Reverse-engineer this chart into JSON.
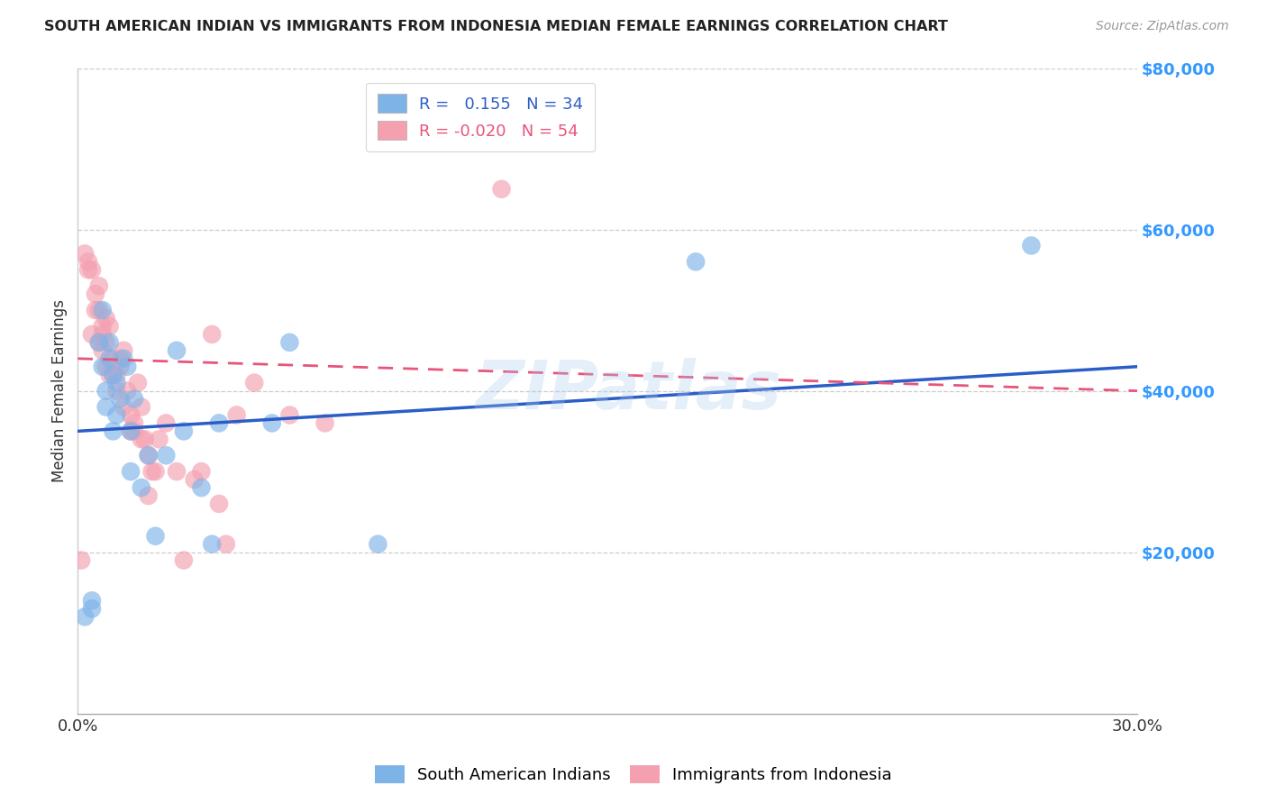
{
  "title": "SOUTH AMERICAN INDIAN VS IMMIGRANTS FROM INDONESIA MEDIAN FEMALE EARNINGS CORRELATION CHART",
  "source": "Source: ZipAtlas.com",
  "ylabel": "Median Female Earnings",
  "xlim": [
    0.0,
    0.3
  ],
  "ylim": [
    0,
    80000
  ],
  "xticks": [
    0.0,
    0.05,
    0.1,
    0.15,
    0.2,
    0.25,
    0.3
  ],
  "xticklabels": [
    "0.0%",
    "",
    "",
    "",
    "",
    "",
    "30.0%"
  ],
  "ytick_positions": [
    0,
    20000,
    40000,
    60000,
    80000
  ],
  "ytick_labels": [
    "",
    "$20,000",
    "$40,000",
    "$60,000",
    "$80,000"
  ],
  "blue_R": 0.155,
  "blue_N": 34,
  "pink_R": -0.02,
  "pink_N": 54,
  "blue_color": "#7EB3E8",
  "pink_color": "#F4A0B0",
  "blue_line_color": "#2B5DC8",
  "pink_line_color": "#E8547A",
  "ytick_color": "#3399FF",
  "legend_label_blue": "South American Indians",
  "legend_label_pink": "Immigrants from Indonesia",
  "watermark": "ZIPatlas",
  "blue_line_x0": 0.0,
  "blue_line_y0": 35000,
  "blue_line_x1": 0.3,
  "blue_line_y1": 43000,
  "pink_line_x0": 0.0,
  "pink_line_y0": 44000,
  "pink_line_x1": 0.3,
  "pink_line_y1": 40000,
  "blue_scatter_x": [
    0.002,
    0.004,
    0.004,
    0.006,
    0.007,
    0.007,
    0.008,
    0.008,
    0.009,
    0.009,
    0.01,
    0.01,
    0.011,
    0.011,
    0.012,
    0.013,
    0.014,
    0.015,
    0.015,
    0.016,
    0.018,
    0.02,
    0.022,
    0.025,
    0.028,
    0.03,
    0.035,
    0.038,
    0.04,
    0.055,
    0.06,
    0.085,
    0.175,
    0.27
  ],
  "blue_scatter_y": [
    12000,
    13000,
    14000,
    46000,
    43000,
    50000,
    40000,
    38000,
    44000,
    46000,
    35000,
    42000,
    37000,
    41000,
    39000,
    44000,
    43000,
    35000,
    30000,
    39000,
    28000,
    32000,
    22000,
    32000,
    45000,
    35000,
    28000,
    21000,
    36000,
    36000,
    46000,
    21000,
    56000,
    58000
  ],
  "pink_scatter_x": [
    0.001,
    0.002,
    0.003,
    0.003,
    0.004,
    0.004,
    0.005,
    0.005,
    0.006,
    0.006,
    0.006,
    0.007,
    0.007,
    0.007,
    0.008,
    0.008,
    0.008,
    0.009,
    0.009,
    0.01,
    0.01,
    0.011,
    0.011,
    0.012,
    0.012,
    0.013,
    0.013,
    0.014,
    0.015,
    0.015,
    0.016,
    0.016,
    0.017,
    0.018,
    0.018,
    0.019,
    0.02,
    0.02,
    0.021,
    0.022,
    0.023,
    0.025,
    0.028,
    0.03,
    0.033,
    0.035,
    0.038,
    0.04,
    0.042,
    0.045,
    0.05,
    0.06,
    0.07,
    0.12
  ],
  "pink_scatter_y": [
    19000,
    57000,
    55000,
    56000,
    47000,
    55000,
    52000,
    50000,
    50000,
    53000,
    46000,
    47000,
    48000,
    45000,
    49000,
    46000,
    43000,
    42000,
    48000,
    42000,
    44000,
    40000,
    42000,
    44000,
    43000,
    38000,
    45000,
    40000,
    37000,
    35000,
    36000,
    35000,
    41000,
    38000,
    34000,
    34000,
    32000,
    27000,
    30000,
    30000,
    34000,
    36000,
    30000,
    19000,
    29000,
    30000,
    47000,
    26000,
    21000,
    37000,
    41000,
    37000,
    36000,
    65000
  ]
}
